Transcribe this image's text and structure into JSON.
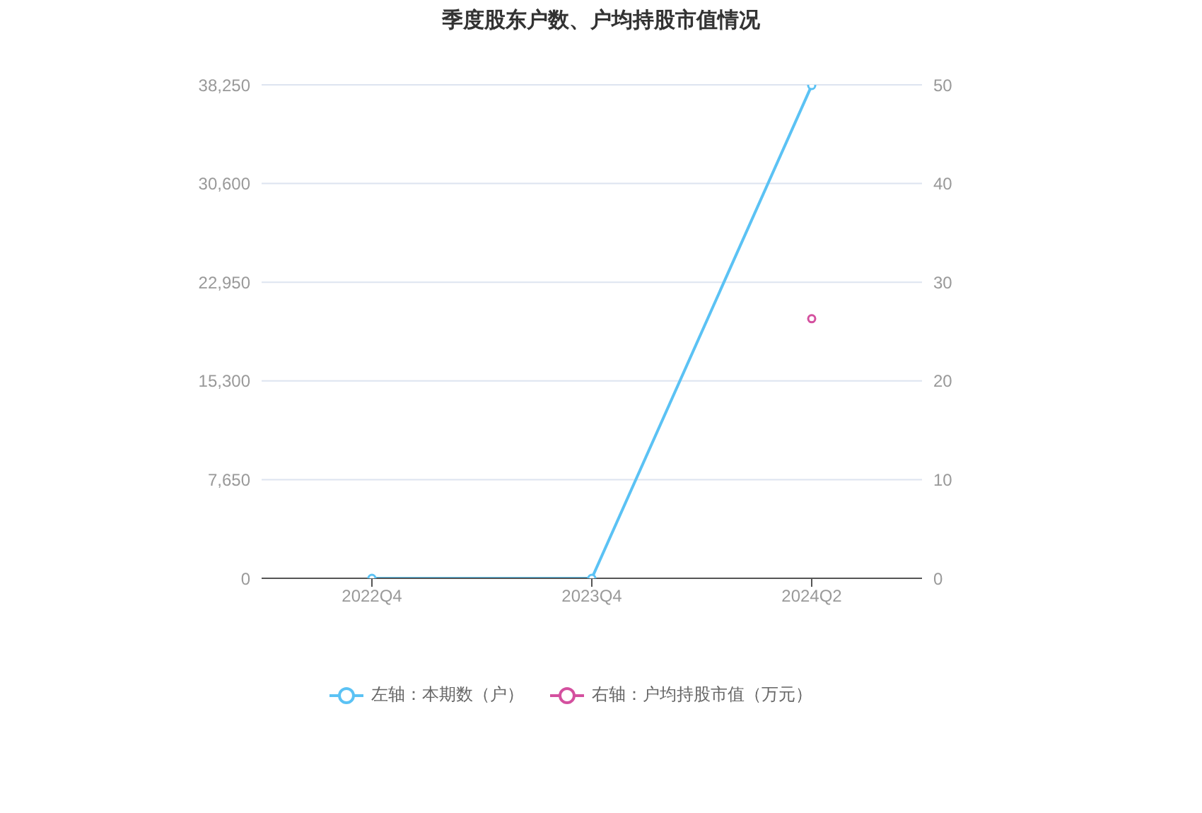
{
  "chart_data": {
    "type": "line",
    "title": "季度股东户数、户均持股市值情况",
    "categories": [
      "2022Q4",
      "2023Q4",
      "2024Q2"
    ],
    "series": [
      {
        "name": "左轴：本期数（户）",
        "color": "#5bc2f4",
        "values": [
          0,
          0,
          38200
        ]
      },
      {
        "name": "右轴：户均持股市值（万元）",
        "color": "#d4509f",
        "values": [
          null,
          null,
          26.3
        ],
        "axis": "y2"
      }
    ],
    "ylim": [
      0,
      38250
    ],
    "yticks": [
      0,
      {
        "value": 7650,
        "label": "7,650"
      },
      {
        "value": 15300,
        "label": "15,300"
      },
      {
        "value": 22950,
        "label": "22,950"
      },
      {
        "value": 30600,
        "label": "30,600"
      },
      {
        "value": 38250,
        "label": "38,250"
      }
    ],
    "y2lim": [
      0,
      50
    ],
    "y2ticks": [
      0,
      10,
      20,
      30,
      40,
      50
    ],
    "grid": "y",
    "legend": "bottom",
    "marker": "circle",
    "line_style": "solid"
  }
}
